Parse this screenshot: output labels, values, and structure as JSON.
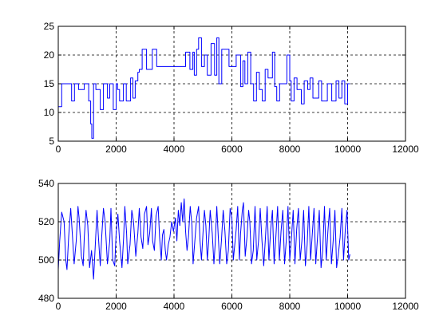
{
  "chart_data": [
    {
      "type": "line",
      "title": "",
      "xlabel": "",
      "ylabel": "",
      "xlim": [
        0,
        12000
      ],
      "ylim": [
        5,
        25
      ],
      "xticks": [
        0,
        2000,
        4000,
        6000,
        8000,
        10000,
        12000
      ],
      "yticks": [
        5,
        10,
        15,
        20,
        25
      ],
      "grid": true,
      "color": "#0000ff",
      "series": [
        {
          "x": [
            0,
            0,
            120,
            120,
            300,
            300,
            460,
            460,
            560,
            560,
            700,
            700,
            900,
            900,
            1050,
            1050,
            1120,
            1120,
            1160,
            1160,
            1220,
            1220,
            1300,
            1300,
            1450,
            1450,
            1560,
            1560,
            1700,
            1700,
            1780,
            1780,
            1900,
            1900,
            2000,
            2000,
            2050,
            2050,
            2120,
            2120,
            2250,
            2250,
            2350,
            2350,
            2500,
            2500,
            2580,
            2580,
            2660,
            2660,
            2750,
            2750,
            2800,
            2800,
            2900,
            2900,
            3050,
            3050,
            3250,
            3250,
            3400,
            3400,
            3500,
            3500,
            3600,
            3600,
            3800,
            3800,
            4000,
            4000,
            4200,
            4200,
            4400,
            4400,
            4550,
            4550,
            4650,
            4650,
            4700,
            4700,
            4780,
            4780,
            4850,
            4850,
            4950,
            4950,
            5050,
            5050,
            5150,
            5150,
            5280,
            5280,
            5400,
            5400,
            5480,
            5480,
            5550,
            5550,
            5650,
            5650,
            5800,
            5800,
            5900,
            5900,
            6000,
            6000,
            6150,
            6150,
            6300,
            6300,
            6380,
            6380,
            6450,
            6450,
            6550,
            6550,
            6650,
            6650,
            6750,
            6750,
            6850,
            6850,
            6950,
            6950,
            7050,
            7050,
            7150,
            7150,
            7250,
            7250,
            7400,
            7400,
            7480,
            7480,
            7550,
            7550,
            7650,
            7650,
            7800,
            7800,
            7900,
            7900,
            8000,
            8000,
            8050,
            8050,
            8150,
            8150,
            8250,
            8250,
            8400,
            8400,
            8500,
            8500,
            8620,
            8620,
            8700,
            8700,
            8800,
            8800,
            9000,
            9000,
            9100,
            9100,
            9300,
            9300,
            9450,
            9450,
            9600,
            9600,
            9700,
            9700,
            9800,
            9800,
            9900,
            9900,
            10000,
            10000,
            10080
          ],
          "y": [
            12,
            11,
            11,
            15,
            15,
            15,
            15,
            12,
            12,
            15,
            15,
            14,
            14,
            15,
            15,
            12,
            12,
            8,
            8,
            5.5,
            5.5,
            15,
            15,
            14,
            14,
            10.5,
            10.5,
            15,
            15,
            12.5,
            12.5,
            15,
            15,
            10.5,
            10.5,
            15,
            15,
            14,
            14,
            12,
            12,
            15,
            15,
            12,
            12,
            16,
            16,
            12.5,
            12.5,
            15.5,
            15.5,
            17,
            17,
            17.5,
            17.5,
            21,
            21,
            17.5,
            17.5,
            21,
            21,
            18,
            18,
            18,
            18,
            18,
            18,
            18,
            18,
            18,
            18,
            18,
            18,
            20.5,
            20.5,
            17.5,
            17.5,
            20.5,
            20.5,
            16.5,
            16.5,
            21,
            21,
            23,
            23,
            18,
            18,
            20,
            20,
            16.5,
            16.5,
            22,
            22,
            16.5,
            16.5,
            23,
            23,
            15,
            15,
            21,
            21,
            21,
            21,
            18,
            18,
            18,
            18,
            20,
            20,
            14.5,
            14.5,
            19,
            19,
            15,
            15,
            20.5,
            20.5,
            15,
            15,
            12,
            12,
            17,
            17,
            14,
            14,
            12,
            12,
            17.5,
            17.5,
            16,
            16,
            20.5,
            20.5,
            14.5,
            14.5,
            12,
            12,
            15,
            15,
            15,
            15,
            20,
            20,
            15.5,
            15.5,
            12,
            12,
            16,
            16,
            14,
            14,
            11.5,
            11.5,
            15.5,
            15.5,
            14,
            14,
            16,
            16,
            12.5,
            12.5,
            15.5,
            15.5,
            12,
            12,
            15,
            15,
            12,
            12,
            15.5,
            15.5,
            12.5,
            12.5,
            15.5,
            15.5,
            11.5,
            11.5,
            15,
            15
          ]
        }
      ]
    },
    {
      "type": "line",
      "title": "",
      "xlabel": "",
      "ylabel": "",
      "xlim": [
        0,
        12000
      ],
      "ylim": [
        480,
        540
      ],
      "xticks": [
        0,
        2000,
        4000,
        6000,
        8000,
        10000,
        12000
      ],
      "yticks": [
        480,
        500,
        520,
        540
      ],
      "grid": true,
      "color": "#0000ff",
      "series": [
        {
          "x": [
            0,
            50,
            120,
            200,
            260,
            300,
            360,
            430,
            480,
            550,
            620,
            680,
            720,
            800,
            860,
            900,
            960,
            1020,
            1080,
            1150,
            1220,
            1280,
            1340,
            1380,
            1450,
            1500,
            1560,
            1620,
            1700,
            1780,
            1820,
            1880,
            1950,
            2000,
            2060,
            2120,
            2200,
            2260,
            2300,
            2360,
            2400,
            2480,
            2540,
            2600,
            2680,
            2750,
            2800,
            2860,
            2920,
            2980,
            3050,
            3100,
            3160,
            3220,
            3260,
            3320,
            3380,
            3450,
            3500,
            3560,
            3600,
            3650,
            3700,
            3740,
            3800,
            3860,
            3920,
            3980,
            4050,
            4100,
            4150,
            4200,
            4250,
            4300,
            4350,
            4400,
            4450,
            4500,
            4560,
            4620,
            4660,
            4720,
            4780,
            4850,
            4900,
            4950,
            5000,
            5050,
            5100,
            5150,
            5200,
            5250,
            5320,
            5380,
            5420,
            5480,
            5530,
            5580,
            5640,
            5700,
            5760,
            5820,
            5880,
            5940,
            6000,
            6050,
            6100,
            6150,
            6200,
            6260,
            6300,
            6360,
            6400,
            6460,
            6520,
            6580,
            6620,
            6680,
            6740,
            6800,
            6860,
            6920,
            6980,
            7040,
            7100,
            7160,
            7220,
            7280,
            7340,
            7400,
            7460,
            7520,
            7580,
            7640,
            7700,
            7760,
            7820,
            7880,
            7940,
            8000,
            8060,
            8120,
            8180,
            8240,
            8300,
            8360,
            8420,
            8480,
            8540,
            8600,
            8660,
            8720,
            8780,
            8840,
            8900,
            8960,
            9020,
            9080,
            9140,
            9200,
            9260,
            9320,
            9380,
            9440,
            9500,
            9560,
            9620,
            9680,
            9740,
            9800,
            9860,
            9920,
            9980,
            10040,
            10080
          ],
          "y": [
            495,
            510,
            525,
            520,
            500,
            495,
            512,
            527,
            515,
            498,
            510,
            528,
            522,
            502,
            497,
            512,
            526,
            518,
            496,
            505,
            490,
            508,
            526,
            514,
            497,
            512,
            527,
            520,
            498,
            510,
            527,
            500,
            497,
            514,
            524,
            510,
            496,
            512,
            528,
            514,
            498,
            508,
            526,
            520,
            502,
            514,
            527,
            512,
            506,
            524,
            528,
            508,
            514,
            527,
            510,
            505,
            523,
            528,
            512,
            500,
            513,
            516,
            505,
            500,
            508,
            512,
            520,
            515,
            522,
            510,
            526,
            518,
            530,
            520,
            532,
            515,
            505,
            512,
            528,
            518,
            498,
            510,
            522,
            528,
            510,
            500,
            514,
            526,
            518,
            500,
            510,
            526,
            514,
            498,
            508,
            528,
            512,
            498,
            510,
            526,
            515,
            498,
            505,
            527,
            522,
            500,
            508,
            516,
            528,
            500,
            514,
            526,
            530,
            502,
            512,
            526,
            520,
            498,
            505,
            528,
            500,
            510,
            527,
            510,
            497,
            512,
            528,
            500,
            516,
            526,
            498,
            512,
            528,
            500,
            515,
            526,
            498,
            510,
            528,
            500,
            512,
            526,
            498,
            516,
            527,
            500,
            510,
            526,
            497,
            508,
            528,
            500,
            514,
            527,
            498,
            512,
            526,
            496,
            505,
            528,
            500,
            515,
            527,
            498,
            510,
            526,
            496,
            503,
            512,
            527,
            500,
            516,
            526,
            500,
            503
          ]
        }
      ]
    }
  ]
}
